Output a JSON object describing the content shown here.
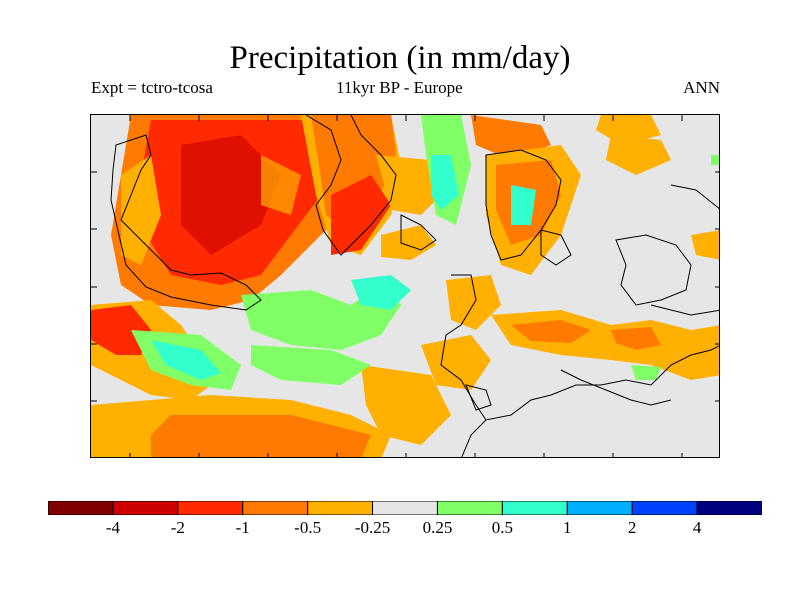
{
  "title": "Precipitation (in mm/day)",
  "subtitle_left": "Expt = tctro-tcosa",
  "subtitle_center": "11kyr BP - Europe",
  "subtitle_right": "ANN",
  "colorbar": {
    "colors": [
      "#800000",
      "#cc0000",
      "#ff2a00",
      "#ff7a00",
      "#ffb000",
      "#e6e6e6",
      "#80ff66",
      "#33ffcc",
      "#00b0ff",
      "#0040ff",
      "#000080"
    ],
    "labels": [
      "-4",
      "-2",
      "-1",
      "-0.5",
      "-0.25",
      "0.25",
      "0.5",
      "1",
      "2",
      "4"
    ]
  },
  "map": {
    "background_color": "#e6e6e6",
    "land_outline_color": "#000000"
  }
}
